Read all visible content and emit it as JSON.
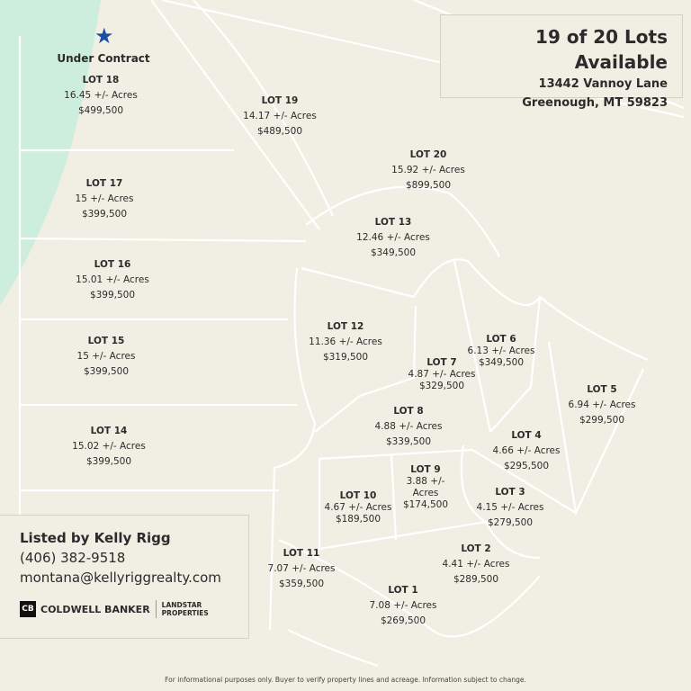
{
  "header": {
    "availability": "19 of 20 Lots Available",
    "address_line1": "13442 Vannoy Lane",
    "address_line2": "Greenough, MT 59823"
  },
  "status_marker": {
    "icon": "star-icon",
    "label": "Under Contract",
    "color": "#1c4fa3"
  },
  "lots": [
    {
      "title": "LOT 18",
      "acres": "16.45 +/- Acres",
      "price": "$499,500"
    },
    {
      "title": "LOT 19",
      "acres": "14.17 +/- Acres",
      "price": "$489,500"
    },
    {
      "title": "LOT 20",
      "acres": "15.92 +/- Acres",
      "price": "$899,500"
    },
    {
      "title": "LOT 17",
      "acres": "15 +/- Acres",
      "price": "$399,500"
    },
    {
      "title": "LOT 13",
      "acres": "12.46 +/- Acres",
      "price": "$349,500"
    },
    {
      "title": "LOT 16",
      "acres": "15.01 +/- Acres",
      "price": "$399,500"
    },
    {
      "title": "LOT 12",
      "acres": "11.36 +/- Acres",
      "price": "$319,500"
    },
    {
      "title": "LOT 15",
      "acres": "15 +/- Acres",
      "price": "$399,500"
    },
    {
      "title": "LOT 6",
      "acres": "6.13 +/- Acres",
      "price": "$349,500"
    },
    {
      "title": "LOT 7",
      "acres": "4.87 +/- Acres",
      "price": "$329,500"
    },
    {
      "title": "LOT 5",
      "acres": "6.94 +/- Acres",
      "price": "$299,500"
    },
    {
      "title": "LOT 8",
      "acres": "4.88 +/- Acres",
      "price": "$339,500"
    },
    {
      "title": "LOT 14",
      "acres": "15.02 +/- Acres",
      "price": "$399,500"
    },
    {
      "title": "LOT 4",
      "acres": "4.66 +/- Acres",
      "price": "$295,500"
    },
    {
      "title": "LOT 9",
      "acres": "3.88 +/- Acres",
      "price": "$174,500"
    },
    {
      "title": "LOT 3",
      "acres": "4.15 +/- Acres",
      "price": "$279,500"
    },
    {
      "title": "LOT 10",
      "acres": "4.67 +/- Acres",
      "price": "$189,500"
    },
    {
      "title": "LOT 2",
      "acres": "4.41 +/- Acres",
      "price": "$289,500"
    },
    {
      "title": "LOT 11",
      "acres": "7.07 +/- Acres",
      "price": "$359,500"
    },
    {
      "title": "LOT 1",
      "acres": "7.08 +/- Acres",
      "price": "$269,500"
    }
  ],
  "listing": {
    "agent": "Listed by Kelly Rigg",
    "phone": "(406) 382-9518",
    "email": "montana@kellyriggrealty.com",
    "brand_logo": "CB",
    "brand_name": "COLDWELL BANKER",
    "partner_line1": "LANDSTAR",
    "partner_line2": "PROPERTIES"
  },
  "colors": {
    "background": "#f1eee3",
    "green_area": "#cdeedd",
    "parcel_lines": "#ffffff"
  },
  "disclaimer": "For informational purposes only. Buyer to verify property lines and acreage. Information subject to change."
}
